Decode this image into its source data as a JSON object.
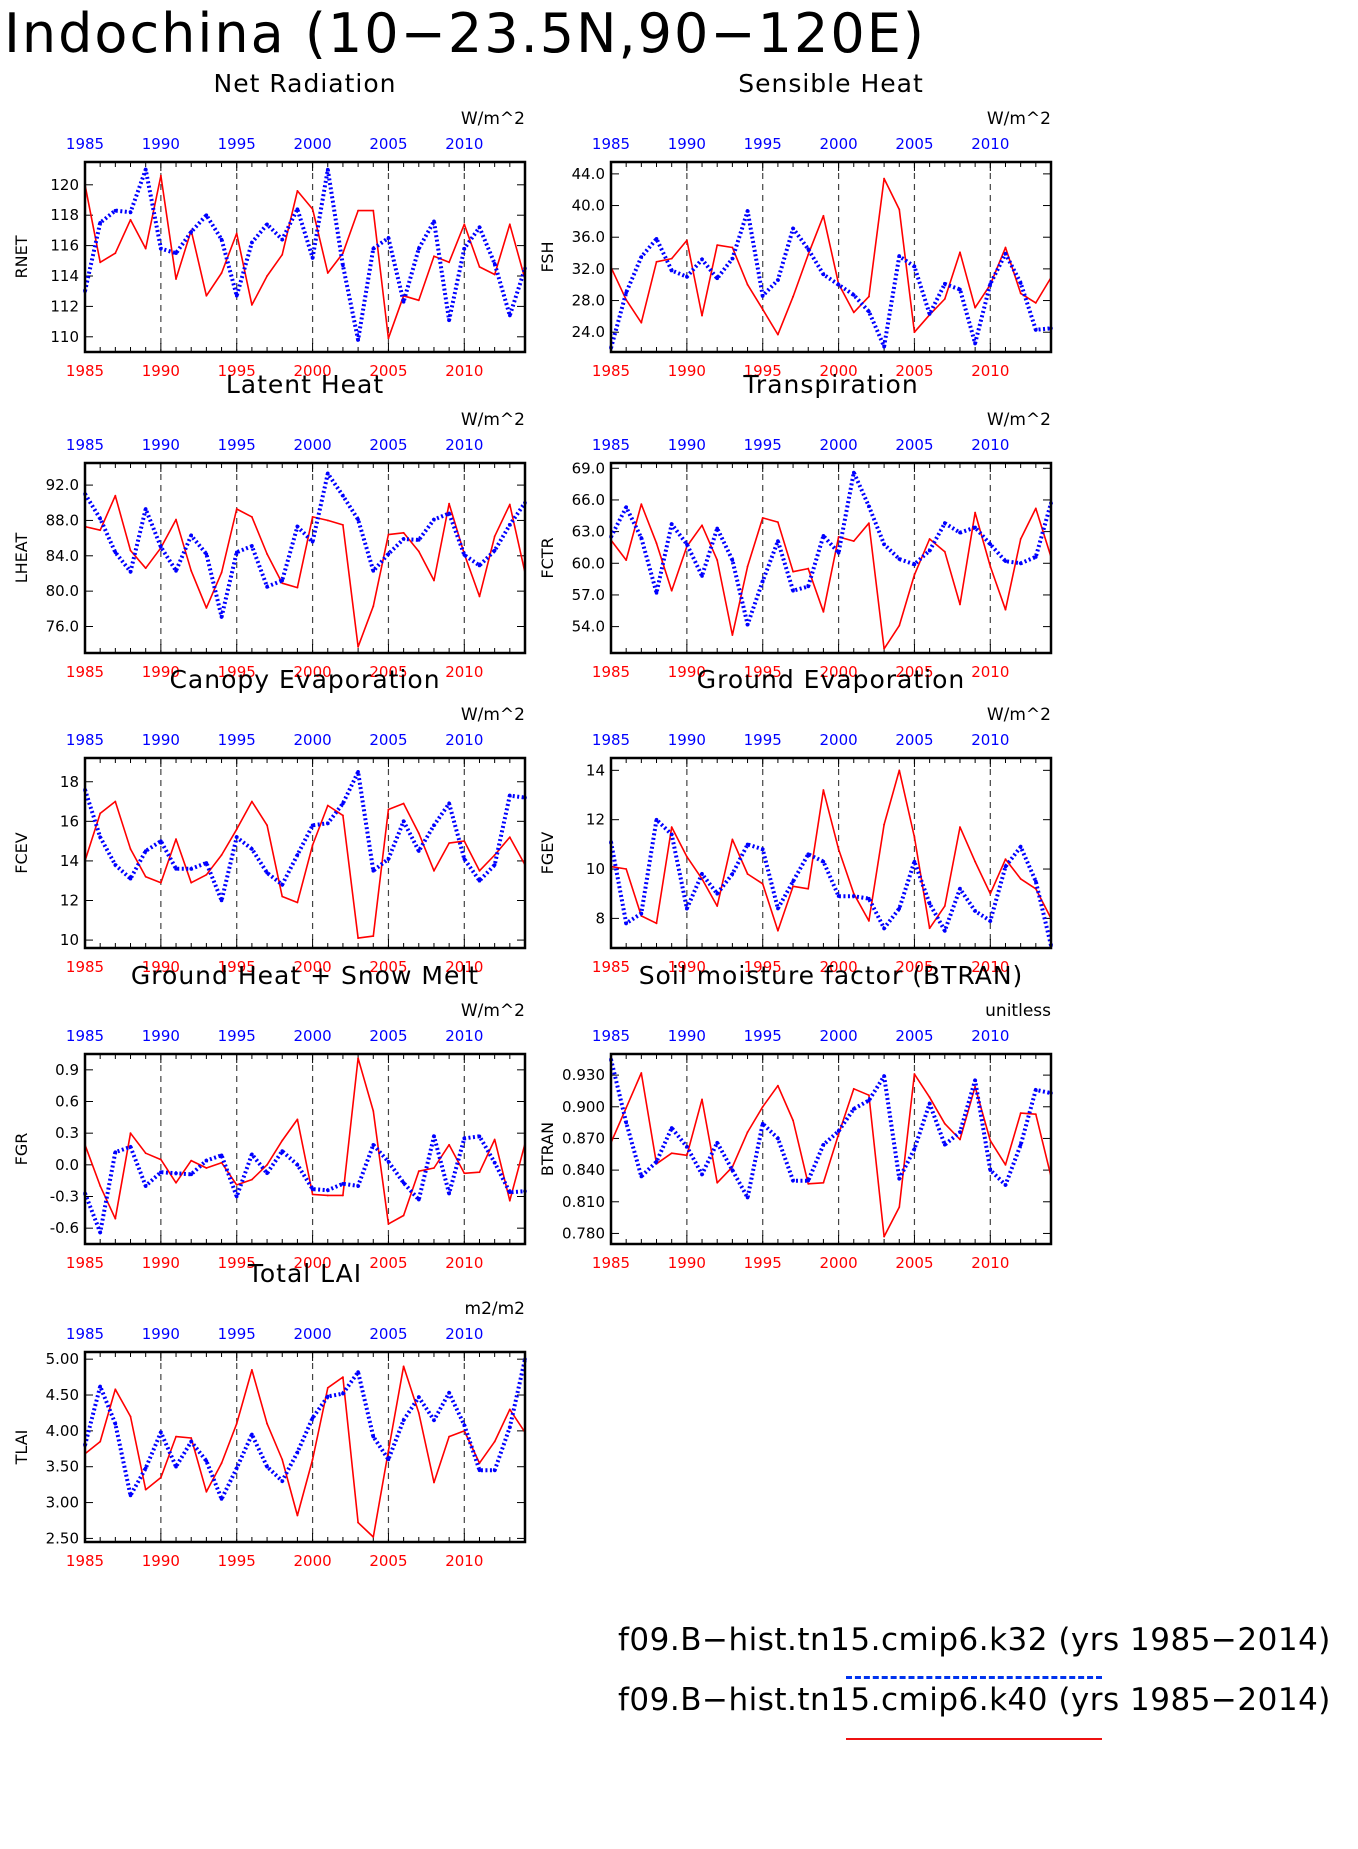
{
  "title": "Indochina (10−23.5N,90−120E)",
  "colors": {
    "k32": "#0000ff",
    "k40": "#ff0000",
    "dash": "#444444"
  },
  "legend": {
    "k32": "f09.B−hist.tn15.cmip6.k32 (yrs 1985−2014)",
    "k40": "f09.B−hist.tn15.cmip6.k40 (yrs 1985−2014)"
  },
  "chart_data": [
    {
      "type": "line",
      "title": "Net Radiation",
      "ylabel": "RNET",
      "units": "W/m^2",
      "xlim": [
        1985,
        2014
      ],
      "ylim": [
        109,
        121.5
      ],
      "xticks": [
        1985,
        1990,
        1995,
        2000,
        2005,
        2010
      ],
      "yticks": [
        110,
        112,
        114,
        116,
        118,
        120
      ],
      "tick_decimals": 0,
      "series": [
        {
          "name": "f09.B−hist.tn15.cmip6.k32 (yrs 1985−2014)",
          "color": "#0000ff",
          "values": [
            113.0,
            117.5,
            118.3,
            118.2,
            121.0,
            115.8,
            115.5,
            116.9,
            118.0,
            116.4,
            112.7,
            116.2,
            117.4,
            116.4,
            118.4,
            115.2,
            121.0,
            114.7,
            109.8,
            115.8,
            116.5,
            112.3,
            115.8,
            117.6,
            111.1,
            115.8,
            117.2,
            114.8,
            111.4,
            114.5
          ]
        },
        {
          "name": "f09.B−hist.tn15.cmip6.k40 (yrs 1985−2014)",
          "color": "#ff0000",
          "values": [
            120.0,
            114.9,
            115.5,
            117.7,
            115.8,
            120.6,
            113.8,
            117.0,
            112.7,
            114.2,
            116.8,
            112.1,
            114.0,
            115.4,
            119.6,
            118.4,
            114.2,
            115.5,
            118.3,
            118.3,
            109.9,
            112.7,
            112.4,
            115.3,
            114.9,
            117.4,
            114.6,
            114.1,
            117.4,
            113.8
          ]
        }
      ]
    },
    {
      "type": "line",
      "title": "Sensible Heat",
      "ylabel": "FSH",
      "units": "W/m^2",
      "xlim": [
        1985,
        2014
      ],
      "ylim": [
        21.5,
        45.5
      ],
      "xticks": [
        1985,
        1990,
        1995,
        2000,
        2005,
        2010
      ],
      "yticks": [
        24,
        28,
        32,
        36,
        40,
        44
      ],
      "tick_decimals": 1,
      "series": [
        {
          "name": "f09.B−hist.tn15.cmip6.k32 (yrs 1985−2014)",
          "color": "#0000ff",
          "values": [
            22.0,
            29.0,
            33.5,
            35.8,
            31.8,
            31.0,
            33.2,
            30.8,
            33.3,
            39.3,
            28.6,
            30.6,
            37.1,
            34.5,
            31.3,
            30.0,
            28.7,
            26.6,
            22.2,
            33.6,
            32.3,
            26.3,
            30.1,
            29.4,
            22.6,
            30.1,
            33.9,
            30.2,
            24.3,
            24.5
          ]
        },
        {
          "name": "f09.B−hist.tn15.cmip6.k40 (yrs 1985−2014)",
          "color": "#ff0000",
          "values": [
            32.2,
            28.1,
            25.2,
            32.9,
            33.3,
            35.6,
            26.1,
            35.0,
            34.7,
            30.0,
            26.9,
            23.7,
            28.5,
            33.8,
            38.7,
            30.1,
            26.5,
            28.5,
            43.4,
            39.5,
            24.0,
            26.2,
            28.2,
            34.1,
            27.1,
            30.0,
            34.7,
            28.9,
            27.7,
            30.9
          ]
        }
      ]
    },
    {
      "type": "line",
      "title": "Latent Heat",
      "ylabel": "LHEAT",
      "units": "W/m^2",
      "xlim": [
        1985,
        2014
      ],
      "ylim": [
        73,
        94.5
      ],
      "xticks": [
        1985,
        1990,
        1995,
        2000,
        2005,
        2010
      ],
      "yticks": [
        76,
        80,
        84,
        88,
        92
      ],
      "tick_decimals": 1,
      "series": [
        {
          "name": "f09.B−hist.tn15.cmip6.k32 (yrs 1985−2014)",
          "color": "#0000ff",
          "values": [
            91.0,
            88.2,
            84.4,
            82.2,
            89.3,
            85.0,
            82.3,
            86.3,
            84.2,
            77.1,
            84.4,
            85.1,
            80.5,
            81.2,
            87.3,
            85.6,
            93.3,
            90.8,
            88.1,
            82.3,
            84.2,
            85.9,
            85.8,
            88.1,
            88.8,
            84.1,
            82.9,
            84.6,
            87.5,
            90.0
          ]
        },
        {
          "name": "f09.B−hist.tn15.cmip6.k40 (yrs 1985−2014)",
          "color": "#ff0000",
          "values": [
            87.3,
            86.9,
            90.8,
            84.6,
            82.6,
            84.9,
            88.1,
            82.3,
            78.1,
            82.1,
            89.3,
            88.4,
            84.2,
            80.9,
            80.4,
            88.4,
            88.0,
            87.5,
            73.7,
            78.3,
            86.4,
            86.6,
            84.5,
            81.2,
            89.9,
            84.2,
            79.4,
            86.2,
            89.8,
            82.1
          ]
        }
      ]
    },
    {
      "type": "line",
      "title": "Transpiration",
      "ylabel": "FCTR",
      "units": "W/m^2",
      "xlim": [
        1985,
        2014
      ],
      "ylim": [
        51.5,
        69.5
      ],
      "xticks": [
        1985,
        1990,
        1995,
        2000,
        2005,
        2010
      ],
      "yticks": [
        54,
        57,
        60,
        63,
        66,
        69
      ],
      "tick_decimals": 1,
      "series": [
        {
          "name": "f09.B−hist.tn15.cmip6.k32 (yrs 1985−2014)",
          "color": "#0000ff",
          "values": [
            62.5,
            65.3,
            62.4,
            57.2,
            63.7,
            61.8,
            58.8,
            63.3,
            60.3,
            54.2,
            58.3,
            62.1,
            57.4,
            57.8,
            62.6,
            61.0,
            68.6,
            65.4,
            61.8,
            60.4,
            59.9,
            61.2,
            63.8,
            62.9,
            63.4,
            61.8,
            60.2,
            60.0,
            60.6,
            65.7
          ]
        },
        {
          "name": "f09.B−hist.tn15.cmip6.k40 (yrs 1985−2014)",
          "color": "#ff0000",
          "values": [
            62.2,
            60.3,
            65.6,
            61.9,
            57.4,
            61.6,
            63.6,
            60.3,
            53.2,
            59.7,
            64.3,
            63.9,
            59.2,
            59.5,
            55.4,
            62.5,
            62.1,
            63.8,
            51.9,
            54.1,
            58.9,
            62.3,
            61.1,
            56.1,
            64.8,
            59.7,
            55.6,
            62.3,
            65.2,
            60.6
          ]
        }
      ]
    },
    {
      "type": "line",
      "title": "Canopy Evaporation",
      "ylabel": "FCEV",
      "units": "W/m^2",
      "xlim": [
        1985,
        2014
      ],
      "ylim": [
        9.6,
        19.2
      ],
      "xticks": [
        1985,
        1990,
        1995,
        2000,
        2005,
        2010
      ],
      "yticks": [
        10,
        12,
        14,
        16,
        18
      ],
      "tick_decimals": 0,
      "series": [
        {
          "name": "f09.B−hist.tn15.cmip6.k32 (yrs 1985−2014)",
          "color": "#0000ff",
          "values": [
            17.6,
            15.2,
            13.8,
            13.1,
            14.5,
            15.0,
            13.6,
            13.6,
            13.9,
            12.0,
            15.2,
            14.6,
            13.4,
            12.8,
            14.3,
            15.8,
            15.9,
            16.9,
            18.5,
            13.5,
            14.1,
            16.0,
            14.5,
            15.8,
            16.9,
            14.1,
            13.0,
            13.8,
            17.3,
            17.2
          ]
        },
        {
          "name": "f09.B−hist.tn15.cmip6.k40 (yrs 1985−2014)",
          "color": "#ff0000",
          "values": [
            14.0,
            16.4,
            17.0,
            14.6,
            13.2,
            12.9,
            15.1,
            12.9,
            13.3,
            14.3,
            15.6,
            17.0,
            15.8,
            12.2,
            11.9,
            14.8,
            16.8,
            16.3,
            10.1,
            10.2,
            16.6,
            16.9,
            15.4,
            13.5,
            14.9,
            15.0,
            13.5,
            14.3,
            15.2,
            13.8
          ]
        }
      ]
    },
    {
      "type": "line",
      "title": "Ground Evaporation",
      "ylabel": "FGEV",
      "units": "W/m^2",
      "xlim": [
        1985,
        2014
      ],
      "ylim": [
        6.8,
        14.5
      ],
      "xticks": [
        1985,
        1990,
        1995,
        2000,
        2005,
        2010
      ],
      "yticks": [
        8,
        10,
        12,
        14
      ],
      "tick_decimals": 0,
      "series": [
        {
          "name": "f09.B−hist.tn15.cmip6.k32 (yrs 1985−2014)",
          "color": "#0000ff",
          "values": [
            11.1,
            7.8,
            8.2,
            12.0,
            11.4,
            8.4,
            9.8,
            9.0,
            9.8,
            11.0,
            10.8,
            8.4,
            9.5,
            10.6,
            10.3,
            8.9,
            8.9,
            8.8,
            7.6,
            8.4,
            10.3,
            8.6,
            7.5,
            9.2,
            8.3,
            7.9,
            10.1,
            10.9,
            9.5,
            6.9
          ]
        },
        {
          "name": "f09.B−hist.tn15.cmip6.k40 (yrs 1985−2014)",
          "color": "#ff0000",
          "values": [
            10.1,
            10.0,
            8.1,
            7.8,
            11.7,
            10.5,
            9.6,
            8.5,
            11.2,
            9.8,
            9.4,
            7.5,
            9.3,
            9.2,
            13.2,
            10.8,
            9.0,
            7.9,
            11.8,
            14.0,
            11.3,
            7.6,
            8.5,
            11.7,
            10.3,
            9.0,
            10.4,
            9.6,
            9.2,
            8.0
          ]
        }
      ]
    },
    {
      "type": "line",
      "title": "Ground Heat + Snow Melt",
      "ylabel": "FGR",
      "units": "W/m^2",
      "xlim": [
        1985,
        2014
      ],
      "ylim": [
        -0.75,
        1.05
      ],
      "xticks": [
        1985,
        1990,
        1995,
        2000,
        2005,
        2010
      ],
      "yticks": [
        -0.6,
        -0.3,
        0.0,
        0.3,
        0.6,
        0.9
      ],
      "tick_decimals": 1,
      "series": [
        {
          "name": "f09.B−hist.tn15.cmip6.k32 (yrs 1985−2014)",
          "color": "#0000ff",
          "values": [
            -0.27,
            -0.64,
            0.12,
            0.17,
            -0.2,
            -0.07,
            -0.08,
            -0.09,
            0.04,
            0.09,
            -0.3,
            0.1,
            -0.08,
            0.13,
            0.0,
            -0.23,
            -0.24,
            -0.18,
            -0.2,
            0.19,
            0.03,
            -0.17,
            -0.33,
            0.27,
            -0.27,
            0.25,
            0.27,
            0.02,
            -0.26,
            -0.25
          ]
        },
        {
          "name": "f09.B−hist.tn15.cmip6.k40 (yrs 1985−2014)",
          "color": "#ff0000",
          "values": [
            0.19,
            -0.2,
            -0.51,
            0.3,
            0.11,
            0.05,
            -0.17,
            0.04,
            -0.03,
            0.02,
            -0.19,
            -0.14,
            0.0,
            0.23,
            0.43,
            -0.28,
            -0.29,
            -0.29,
            1.01,
            0.51,
            -0.56,
            -0.48,
            -0.06,
            -0.03,
            0.19,
            -0.08,
            -0.07,
            0.24,
            -0.34,
            0.2
          ]
        }
      ]
    },
    {
      "type": "line",
      "title": "Soil moisture factor (BTRAN)",
      "ylabel": "BTRAN",
      "units": "unitless",
      "xlim": [
        1985,
        2014
      ],
      "ylim": [
        0.77,
        0.95
      ],
      "xticks": [
        1985,
        1990,
        1995,
        2000,
        2005,
        2010
      ],
      "yticks": [
        0.78,
        0.81,
        0.84,
        0.87,
        0.9,
        0.93
      ],
      "tick_decimals": 3,
      "series": [
        {
          "name": "f09.B−hist.tn15.cmip6.k32 (yrs 1985−2014)",
          "color": "#0000ff",
          "values": [
            0.945,
            0.885,
            0.834,
            0.848,
            0.88,
            0.862,
            0.836,
            0.866,
            0.84,
            0.814,
            0.884,
            0.87,
            0.83,
            0.83,
            0.864,
            0.877,
            0.898,
            0.906,
            0.929,
            0.832,
            0.86,
            0.903,
            0.864,
            0.876,
            0.925,
            0.84,
            0.826,
            0.864,
            0.916,
            0.913
          ]
        },
        {
          "name": "f09.B−hist.tn15.cmip6.k40 (yrs 1985−2014)",
          "color": "#ff0000",
          "values": [
            0.866,
            0.899,
            0.932,
            0.846,
            0.856,
            0.854,
            0.907,
            0.828,
            0.843,
            0.876,
            0.9,
            0.92,
            0.887,
            0.827,
            0.828,
            0.874,
            0.917,
            0.911,
            0.777,
            0.805,
            0.931,
            0.909,
            0.884,
            0.869,
            0.919,
            0.868,
            0.845,
            0.894,
            0.893,
            0.834
          ]
        }
      ]
    },
    {
      "type": "line",
      "title": "Total LAI",
      "ylabel": "TLAI",
      "units": "m2/m2",
      "xlim": [
        1985,
        2014
      ],
      "ylim": [
        2.45,
        5.1
      ],
      "xticks": [
        1985,
        1990,
        1995,
        2000,
        2005,
        2010
      ],
      "yticks": [
        2.5,
        3.0,
        3.5,
        4.0,
        4.5,
        5.0
      ],
      "tick_decimals": 2,
      "series": [
        {
          "name": "f09.B−hist.tn15.cmip6.k32 (yrs 1985−2014)",
          "color": "#0000ff",
          "values": [
            3.8,
            4.62,
            4.1,
            3.1,
            3.48,
            3.98,
            3.5,
            3.85,
            3.58,
            3.05,
            3.48,
            3.95,
            3.5,
            3.3,
            3.7,
            4.18,
            4.48,
            4.52,
            4.82,
            3.92,
            3.6,
            4.15,
            4.47,
            4.15,
            4.53,
            4.08,
            3.45,
            3.45,
            4.05,
            5.0
          ]
        },
        {
          "name": "f09.B−hist.tn15.cmip6.k40 (yrs 1985−2014)",
          "color": "#ff0000",
          "values": [
            3.68,
            3.85,
            4.58,
            4.2,
            3.18,
            3.35,
            3.92,
            3.9,
            3.15,
            3.55,
            4.1,
            4.85,
            4.1,
            3.6,
            2.82,
            3.6,
            4.6,
            4.75,
            2.72,
            2.52,
            3.72,
            4.9,
            4.25,
            3.28,
            3.92,
            4.0,
            3.55,
            3.85,
            4.3,
            3.98
          ]
        }
      ]
    }
  ]
}
